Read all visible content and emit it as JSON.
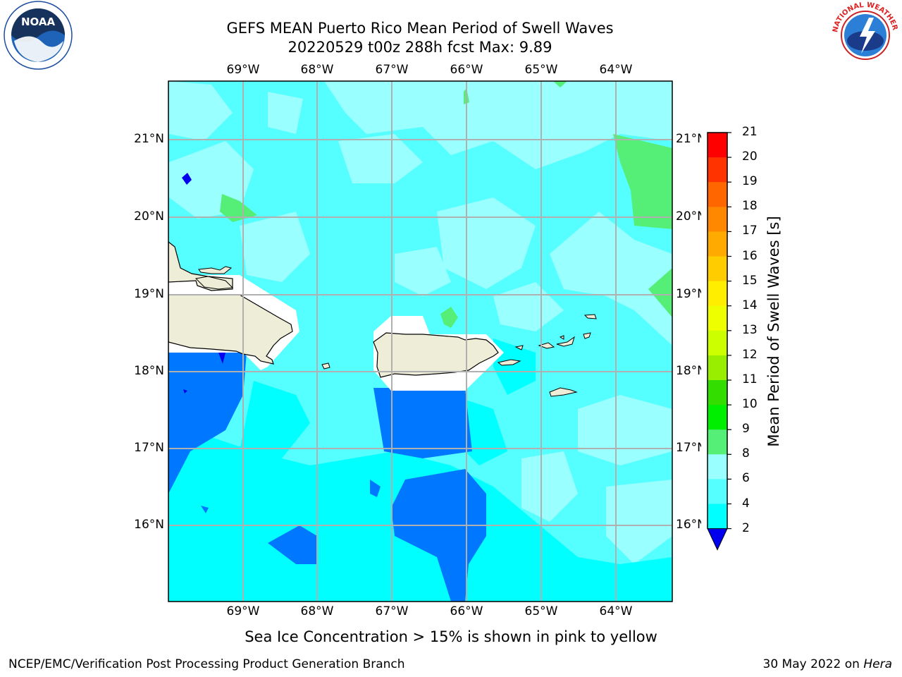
{
  "title": {
    "line1": "GEFS MEAN Puerto Rico Mean Period of Swell Waves",
    "line2": "20220529 t00z 288h fcst   Max: 9.89"
  },
  "map": {
    "lon_labels": [
      "69°W",
      "68°W",
      "67°W",
      "66°W",
      "65°W",
      "64°W"
    ],
    "lat_labels": [
      "21°N",
      "20°N",
      "19°N",
      "18°N",
      "17°N",
      "16°N"
    ]
  },
  "colorbar": {
    "title": "Mean Period of Swell Waves [s]",
    "ticks": [
      "21",
      "20",
      "19",
      "18",
      "17",
      "16",
      "15",
      "14",
      "13",
      "12",
      "11",
      "10",
      "9",
      "8",
      "6",
      "4",
      "2"
    ],
    "colors": [
      "#ff0000",
      "#ff3300",
      "#ff6600",
      "#ff8800",
      "#ffaa00",
      "#ffcc00",
      "#ffee00",
      "#eeff00",
      "#ccff00",
      "#99ee00",
      "#33dd00",
      "#00ee00",
      "#55ee77",
      "#99ffff",
      "#55ffff",
      "#00ffff",
      "#0077ff"
    ],
    "underflow_color": "#0000ee"
  },
  "caption": "Sea Ice Concentration > 15% is shown in pink to yellow",
  "footer": {
    "left": "NCEP/EMC/Verification Post Processing Product Generation Branch",
    "right_date": "30 May 2022 on",
    "right_host": "Hera"
  },
  "logos": {
    "noaa_text": "NOAA",
    "nws_text": "NATIONAL WEATHER SERVICE"
  }
}
